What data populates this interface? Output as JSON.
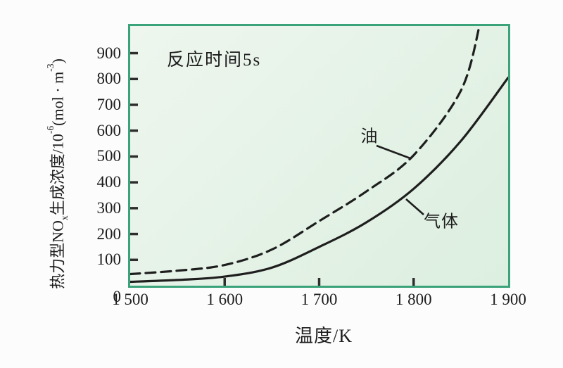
{
  "chart_data": {
    "type": "line",
    "annotation": "反应时间5s",
    "xlabel": "温度/K",
    "ylabel": {
      "part1": "热力型NO",
      "sub": "x",
      "part2": "生成浓度/10",
      "sup1": "-6",
      "part3": "(mol · m",
      "sup2": "-3",
      "part4": ")"
    },
    "xlim": [
      1500,
      1900
    ],
    "ylim": [
      0,
      1005
    ],
    "grid": false,
    "legend_position": "inline-callouts",
    "xticks": [
      {
        "value": 1500,
        "label": "1 500",
        "mark": false
      },
      {
        "value": 1600,
        "label": "1 600",
        "mark": true
      },
      {
        "value": 1700,
        "label": "1 700",
        "mark": true
      },
      {
        "value": 1800,
        "label": "1 800",
        "mark": true
      },
      {
        "value": 1900,
        "label": "1 900",
        "mark": false
      }
    ],
    "yticks": [
      {
        "value": 0,
        "label": "0",
        "mark": false,
        "dy": 16
      },
      {
        "value": 100,
        "label": "100",
        "mark": true
      },
      {
        "value": 200,
        "label": "200",
        "mark": true
      },
      {
        "value": 300,
        "label": "300",
        "mark": true
      },
      {
        "value": 400,
        "label": "400",
        "mark": true
      },
      {
        "value": 500,
        "label": "500",
        "mark": true
      },
      {
        "value": 600,
        "label": "600",
        "mark": true
      },
      {
        "value": 700,
        "label": "700",
        "mark": true
      },
      {
        "value": 800,
        "label": "800",
        "mark": true
      },
      {
        "value": 900,
        "label": "900",
        "mark": true
      }
    ],
    "series": [
      {
        "id": "gas",
        "name": "气体",
        "line_style": "solid",
        "x": [
          1500,
          1550,
          1600,
          1650,
          1700,
          1750,
          1800,
          1850,
          1900
        ],
        "y": [
          15,
          22,
          35,
          70,
          150,
          245,
          375,
          560,
          805
        ],
        "label_pos": {
          "x": 442,
          "y": 275
        },
        "leader": [
          392,
          246,
          417,
          268
        ]
      },
      {
        "id": "oil",
        "name": "油",
        "line_style": "dashed",
        "x": [
          1500,
          1550,
          1600,
          1650,
          1700,
          1750,
          1800,
          1850,
          1870
        ],
        "y": [
          45,
          58,
          80,
          140,
          250,
          365,
          505,
          755,
          1010
        ],
        "label_pos": {
          "x": 340,
          "y": 154
        },
        "leader": [
          350,
          170,
          398,
          188
        ]
      }
    ],
    "colors": {
      "plot_border": "#3aa379",
      "plot_background": "#e4f2e6",
      "curve": "#1e1e1e",
      "text": "#1c1c1c",
      "page_background": "#fcfcfc"
    }
  }
}
